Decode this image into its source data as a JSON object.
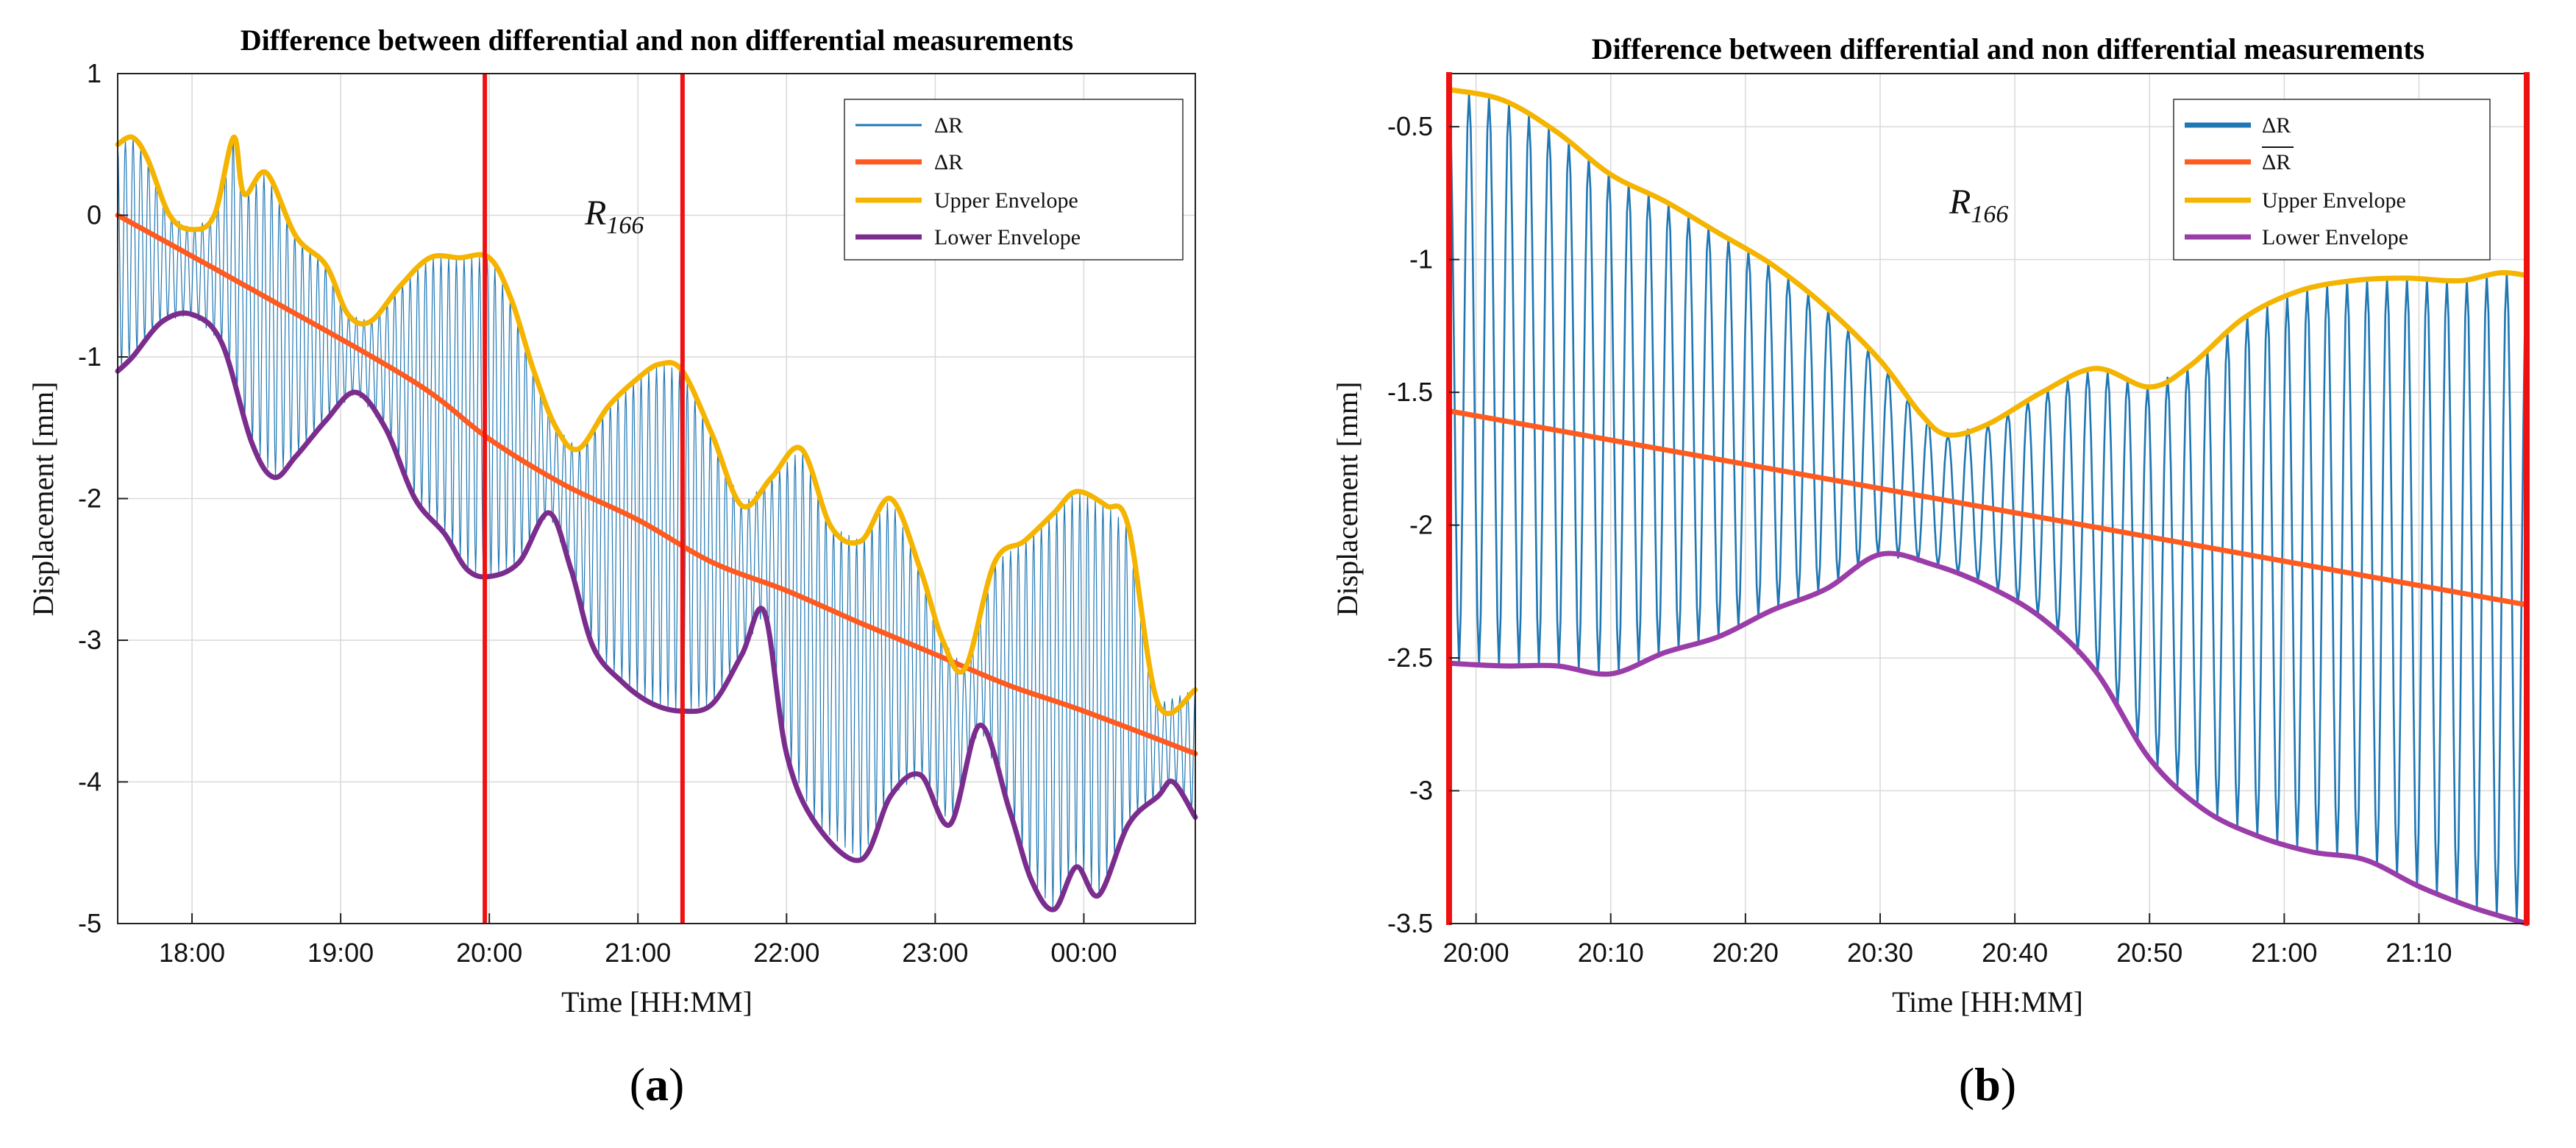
{
  "chart_data": [
    {
      "type": "line",
      "panel_label": {
        "open": "(",
        "letter": "a",
        "close": ")"
      },
      "title": "Difference between differential and non differential measurements",
      "xlabel": "Time [HH:MM]",
      "ylabel": "Displacement [mm]",
      "annotation": {
        "main": "R",
        "sub": "166"
      },
      "x_unit": "hours since 00:00 of first day",
      "xlim": [
        17.5,
        24.75
      ],
      "ylim": [
        -5,
        1
      ],
      "x_ticks": [
        18,
        19,
        20,
        21,
        22,
        23,
        24
      ],
      "x_tick_labels": [
        "18:00",
        "19:00",
        "20:00",
        "21:00",
        "22:00",
        "23:00",
        "00:00"
      ],
      "y_ticks": [
        -5,
        -4,
        -3,
        -2,
        -1,
        0,
        1
      ],
      "y_tick_labels": [
        "-5",
        "-4",
        "-3",
        "-2",
        "-1",
        "0",
        "1"
      ],
      "grid": true,
      "legend_position": "top-right",
      "vertical_markers": [
        19.97,
        21.3
      ],
      "oscillation": {
        "cycles": 140,
        "stroke": 1.2
      },
      "legend": [
        {
          "label": "ΔR",
          "series": "delta_r"
        },
        {
          "label": "ΔR",
          "series": "delta_r_mean"
        },
        {
          "label": "Upper Envelope",
          "series": "upper"
        },
        {
          "label": "Lower Envelope",
          "series": "lower"
        }
      ],
      "series": [
        {
          "name": "delta_r",
          "label": "ΔR",
          "color": "#1f77b4",
          "kind": "oscillation"
        },
        {
          "name": "delta_r_mean",
          "label": "ΔR",
          "color": "#ff5a1f",
          "x": [
            17.5,
            18.5,
            19.5,
            20.0,
            20.5,
            21.0,
            21.5,
            22.0,
            22.5,
            23.0,
            23.5,
            24.0,
            24.75
          ],
          "y": [
            0.0,
            -0.58,
            -1.18,
            -1.58,
            -1.9,
            -2.15,
            -2.45,
            -2.65,
            -2.88,
            -3.1,
            -3.32,
            -3.5,
            -3.8
          ]
        },
        {
          "name": "upper",
          "label": "Upper Envelope",
          "color": "#f5b400",
          "x": [
            17.5,
            17.6,
            17.7,
            17.85,
            18.0,
            18.15,
            18.28,
            18.35,
            18.5,
            18.7,
            18.9,
            19.05,
            19.2,
            19.4,
            19.6,
            19.8,
            20.0,
            20.15,
            20.3,
            20.45,
            20.6,
            20.8,
            21.0,
            21.15,
            21.3,
            21.5,
            21.7,
            21.9,
            22.1,
            22.3,
            22.5,
            22.7,
            22.9,
            23.05,
            23.2,
            23.4,
            23.6,
            23.8,
            23.95,
            24.15,
            24.3,
            24.5,
            24.75
          ],
          "y": [
            0.5,
            0.55,
            0.4,
            0.0,
            -0.1,
            0.0,
            0.55,
            0.15,
            0.3,
            -0.15,
            -0.35,
            -0.7,
            -0.75,
            -0.5,
            -0.3,
            -0.3,
            -0.3,
            -0.6,
            -1.1,
            -1.5,
            -1.65,
            -1.35,
            -1.15,
            -1.05,
            -1.1,
            -1.55,
            -2.05,
            -1.85,
            -1.65,
            -2.2,
            -2.3,
            -2.0,
            -2.5,
            -3.0,
            -3.2,
            -2.45,
            -2.3,
            -2.1,
            -1.95,
            -2.05,
            -2.2,
            -3.45,
            -3.35
          ]
        },
        {
          "name": "lower",
          "label": "Lower Envelope",
          "color": "#7b2d8e",
          "x": [
            17.5,
            17.6,
            17.8,
            18.0,
            18.2,
            18.4,
            18.55,
            18.7,
            18.9,
            19.1,
            19.3,
            19.5,
            19.7,
            19.85,
            20.0,
            20.2,
            20.4,
            20.55,
            20.7,
            20.9,
            21.1,
            21.3,
            21.5,
            21.7,
            21.85,
            22.0,
            22.2,
            22.5,
            22.7,
            22.9,
            23.1,
            23.3,
            23.5,
            23.65,
            23.8,
            23.95,
            24.1,
            24.3,
            24.5,
            24.6,
            24.75
          ],
          "y": [
            -1.1,
            -1.0,
            -0.75,
            -0.7,
            -0.9,
            -1.6,
            -1.85,
            -1.7,
            -1.45,
            -1.25,
            -1.5,
            -2.0,
            -2.25,
            -2.5,
            -2.55,
            -2.45,
            -2.1,
            -2.5,
            -3.05,
            -3.3,
            -3.45,
            -3.5,
            -3.45,
            -3.1,
            -2.8,
            -3.8,
            -4.3,
            -4.55,
            -4.1,
            -3.95,
            -4.3,
            -3.6,
            -4.2,
            -4.7,
            -4.9,
            -4.6,
            -4.8,
            -4.3,
            -4.1,
            -4.0,
            -4.25
          ]
        }
      ]
    },
    {
      "type": "line",
      "panel_label": {
        "open": "(",
        "letter": "b",
        "close": ")"
      },
      "title": "Difference between differential and non differential measurements",
      "xlabel": "Time [HH:MM]",
      "ylabel": "Displacement [mm]",
      "annotation": {
        "main": "R",
        "sub": "166"
      },
      "x_unit": "minutes since 20:00",
      "xlim": [
        -2,
        78
      ],
      "ylim": [
        -3.5,
        -0.3
      ],
      "x_ticks": [
        0,
        10,
        20,
        30,
        40,
        50,
        60,
        70
      ],
      "x_tick_labels": [
        "20:00",
        "20:10",
        "20:20",
        "20:30",
        "20:40",
        "20:50",
        "21:00",
        "21:10"
      ],
      "y_ticks": [
        -3.5,
        -3,
        -2.5,
        -2,
        -1.5,
        -1,
        -0.5
      ],
      "y_tick_labels": [
        "-3.5",
        "-3",
        "-2.5",
        "-2",
        "-1.5",
        "-1",
        "-0.5"
      ],
      "grid": true,
      "legend_position": "top-right",
      "vertical_markers": [
        -2,
        78
      ],
      "oscillation": {
        "cycles": 54,
        "stroke": 2.6
      },
      "legend": [
        {
          "label": "ΔR",
          "series": "delta_r"
        },
        {
          "label": "ΔR",
          "series": "delta_r_mean"
        },
        {
          "label": "Upper Envelope",
          "series": "upper"
        },
        {
          "label": "Lower Envelope",
          "series": "lower"
        }
      ],
      "series": [
        {
          "name": "delta_r",
          "label": "ΔR",
          "color": "#1f77b4",
          "kind": "oscillation"
        },
        {
          "name": "delta_r_mean",
          "label": "ΔR",
          "color": "#ff5a1f",
          "x": [
            -2,
            78
          ],
          "y": [
            -1.57,
            -2.3
          ]
        },
        {
          "name": "upper",
          "label": "Upper Envelope",
          "color": "#f5b400",
          "x": [
            -2,
            2,
            6,
            10,
            14,
            18,
            22,
            26,
            30,
            33,
            35,
            38,
            42,
            46,
            50,
            53,
            57,
            61,
            65,
            69,
            73,
            76,
            78
          ],
          "y": [
            -0.36,
            -0.4,
            -0.52,
            -0.68,
            -0.78,
            -0.9,
            -1.02,
            -1.18,
            -1.38,
            -1.58,
            -1.66,
            -1.62,
            -1.5,
            -1.41,
            -1.48,
            -1.4,
            -1.22,
            -1.12,
            -1.08,
            -1.07,
            -1.08,
            -1.05,
            -1.06
          ]
        },
        {
          "name": "lower",
          "label": "Lower Envelope",
          "color": "#9a3da8",
          "x": [
            -2,
            2,
            6,
            10,
            14,
            18,
            22,
            26,
            30,
            34,
            38,
            42,
            46,
            50,
            54,
            58,
            62,
            66,
            70,
            74,
            78
          ],
          "y": [
            -2.52,
            -2.53,
            -2.53,
            -2.56,
            -2.48,
            -2.42,
            -2.32,
            -2.24,
            -2.11,
            -2.15,
            -2.23,
            -2.35,
            -2.55,
            -2.88,
            -3.07,
            -3.17,
            -3.23,
            -3.26,
            -3.36,
            -3.44,
            -3.5
          ]
        }
      ]
    }
  ]
}
